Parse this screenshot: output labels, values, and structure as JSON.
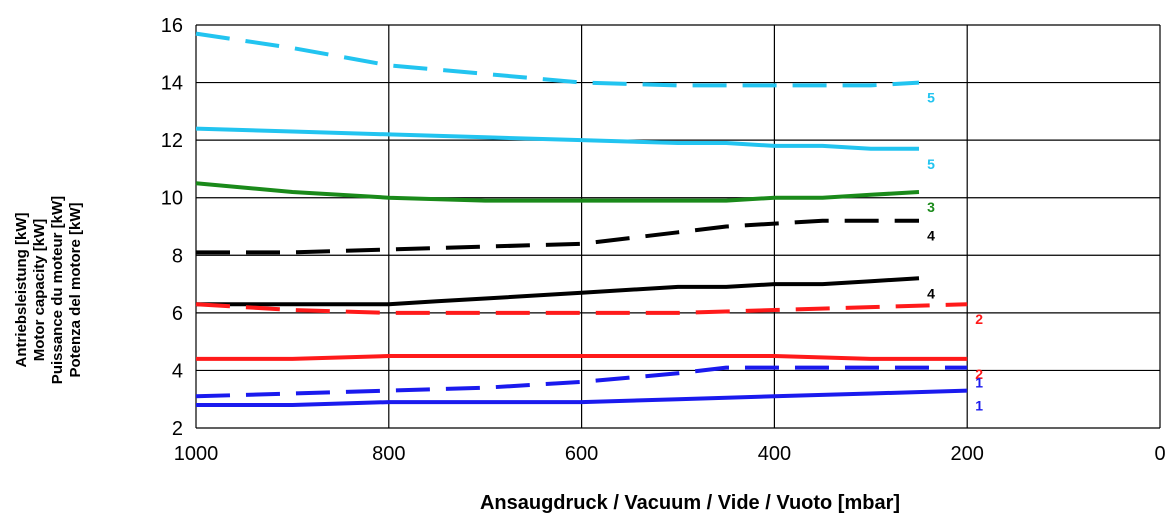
{
  "chart_data": {
    "type": "line",
    "title": "",
    "xlabel": "Ansaugdruck / Vacuum / Vide / Vuoto     [mbar]",
    "ylabel_lines": [
      "Antriebsleistung [kW]",
      "Motor capacity [kW]",
      "Puissance du moteur [kW]",
      "Potenza del motore [kW]"
    ],
    "xlim": [
      1000,
      0
    ],
    "ylim": [
      2,
      16
    ],
    "xticks": [
      "1000",
      "800",
      "600",
      "400",
      "200",
      "0"
    ],
    "xtick_values": [
      1000,
      800,
      600,
      400,
      200,
      0
    ],
    "yticks": [
      "2",
      "4",
      "6",
      "8",
      "10",
      "12",
      "14",
      "16"
    ],
    "ytick_values": [
      2,
      4,
      6,
      8,
      10,
      12,
      14,
      16
    ],
    "grid": true,
    "series": [
      {
        "label": "5",
        "color": "#22c4f0",
        "dashed": true,
        "x": [
          1000,
          900,
          800,
          700,
          600,
          500,
          400,
          300,
          250
        ],
        "y": [
          15.7,
          15.2,
          14.6,
          14.3,
          14.0,
          13.9,
          13.9,
          13.9,
          14.0
        ]
      },
      {
        "label": "5",
        "color": "#22c4f0",
        "dashed": false,
        "x": [
          1000,
          900,
          800,
          700,
          600,
          500,
          450,
          400,
          350,
          300,
          250
        ],
        "y": [
          12.4,
          12.3,
          12.2,
          12.1,
          12.0,
          11.9,
          11.9,
          11.8,
          11.8,
          11.7,
          11.7
        ]
      },
      {
        "label": "3",
        "color": "#1a8a1a",
        "dashed": false,
        "x": [
          1000,
          900,
          800,
          700,
          600,
          500,
          450,
          400,
          350,
          300,
          250
        ],
        "y": [
          10.5,
          10.2,
          10.0,
          9.9,
          9.9,
          9.9,
          9.9,
          10.0,
          10.0,
          10.1,
          10.2
        ]
      },
      {
        "label": "4",
        "color": "#000000",
        "dashed": true,
        "x": [
          1000,
          900,
          800,
          700,
          600,
          500,
          450,
          400,
          350,
          300,
          250
        ],
        "y": [
          8.1,
          8.1,
          8.2,
          8.3,
          8.4,
          8.8,
          9.0,
          9.1,
          9.2,
          9.2,
          9.2
        ]
      },
      {
        "label": "4",
        "color": "#000000",
        "dashed": false,
        "x": [
          1000,
          900,
          800,
          750,
          700,
          600,
          500,
          450,
          400,
          350,
          300,
          250
        ],
        "y": [
          6.3,
          6.3,
          6.3,
          6.4,
          6.5,
          6.7,
          6.9,
          6.9,
          7.0,
          7.0,
          7.1,
          7.2
        ]
      },
      {
        "label": "2",
        "color": "#ff1a1a",
        "dashed": true,
        "x": [
          1000,
          900,
          800,
          700,
          600,
          500,
          400,
          300,
          200
        ],
        "y": [
          6.3,
          6.1,
          6.0,
          6.0,
          6.0,
          6.0,
          6.1,
          6.2,
          6.3
        ]
      },
      {
        "label": "2",
        "color": "#ff1a1a",
        "dashed": false,
        "x": [
          1000,
          900,
          800,
          700,
          600,
          500,
          400,
          300,
          200
        ],
        "y": [
          4.4,
          4.4,
          4.5,
          4.5,
          4.5,
          4.5,
          4.5,
          4.4,
          4.4
        ]
      },
      {
        "label": "1",
        "color": "#1a1aee",
        "dashed": true,
        "x": [
          1000,
          900,
          800,
          700,
          600,
          500,
          450,
          400,
          300,
          200
        ],
        "y": [
          3.1,
          3.2,
          3.3,
          3.4,
          3.6,
          3.9,
          4.1,
          4.1,
          4.1,
          4.1
        ]
      },
      {
        "label": "1",
        "color": "#1a1aee",
        "dashed": false,
        "x": [
          1000,
          900,
          800,
          700,
          600,
          500,
          400,
          300,
          200
        ],
        "y": [
          2.8,
          2.8,
          2.9,
          2.9,
          2.9,
          3.0,
          3.1,
          3.2,
          3.3
        ]
      }
    ]
  }
}
